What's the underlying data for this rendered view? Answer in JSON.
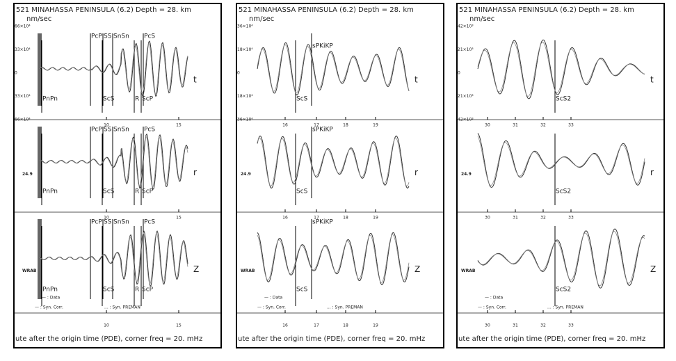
{
  "panels": [
    {
      "header": "521 MINAHASSA PENINSULA      (6.2)  Depth =  28. km",
      "unit": "nm/sec",
      "yticks": [
        "66×10⁴",
        "33×10⁴",
        "0",
        "33×10⁴",
        "66×10⁴"
      ],
      "traces": [
        {
          "label": null,
          "component": "t",
          "phases_top": [
            "PcP",
            "SS",
            "SnSn",
            "PcS"
          ],
          "phases_bottom": [
            "PnPn",
            "ScS",
            "R",
            "ScP"
          ]
        },
        {
          "label": "24.9",
          "component": "r",
          "phases_top": [
            "PcP",
            "SS",
            "SnSn",
            "PcS"
          ],
          "phases_bottom": [
            "PnPn",
            "ScS",
            "R",
            "ScP"
          ]
        },
        {
          "label": "WRAB",
          "component": "Z",
          "phases_top": [
            "PcP",
            "SS",
            "SnSn",
            "PcS"
          ],
          "phases_bottom": [
            "PnPn",
            "ScS",
            "R",
            "ScP"
          ]
        }
      ],
      "xticks": [
        "10",
        "15"
      ],
      "legend": [
        "— : Data",
        "— : Syn. Corr.",
        "... : Syn. PREMAN"
      ],
      "footer": "ute after the origin time (PDE), corner freq  = 20. mHz"
    },
    {
      "header": "521 MINAHASSA PENINSULA      (6.2)  Depth =  28. km",
      "unit": "nm/sec",
      "yticks": [
        "36×10⁴",
        "18×10⁴",
        "0",
        "18×10⁴",
        "36×10⁴"
      ],
      "traces": [
        {
          "label": null,
          "component": "t",
          "phases_top": [
            "sPKiKP"
          ],
          "phases_bottom": [
            "ScS"
          ]
        },
        {
          "label": "24.9",
          "component": "r",
          "phases_top": [
            "sPKiKP"
          ],
          "phases_bottom": [
            "ScS"
          ]
        },
        {
          "label": "WRAB",
          "component": "Z",
          "phases_top": [
            "sPKiKP"
          ],
          "phases_bottom": [
            "ScS"
          ]
        }
      ],
      "xticks": [
        "16",
        "17",
        "18",
        "19"
      ],
      "legend": [
        "— : Data",
        "— : Syn. Corr.",
        "... : Syn. PREMAN"
      ],
      "footer": "ute after the origin time (PDE), corner freq  = 20. mHz"
    },
    {
      "header": "521 MINAHASSA PENINSULA      (6.2)  Depth =  28. km",
      "unit": "nm/sec",
      "yticks": [
        "42×10³",
        "21×10³",
        "0",
        "21×10³",
        "42×10³"
      ],
      "traces": [
        {
          "label": null,
          "component": "t",
          "phases_top": [],
          "phases_bottom": [
            "ScS2"
          ]
        },
        {
          "label": "24.9",
          "component": "r",
          "phases_top": [],
          "phases_bottom": [
            "ScS2"
          ]
        },
        {
          "label": "WRAB",
          "component": "Z",
          "phases_top": [],
          "phases_bottom": [
            "ScS2"
          ]
        }
      ],
      "xticks": [
        "30",
        "31",
        "32",
        "33"
      ],
      "legend": [
        "— : Data",
        "— : Syn. Corr.",
        "... : Syn. PREMAN"
      ],
      "footer": "ute after the origin time (PDE), corner freq  = 20. mHz"
    }
  ]
}
